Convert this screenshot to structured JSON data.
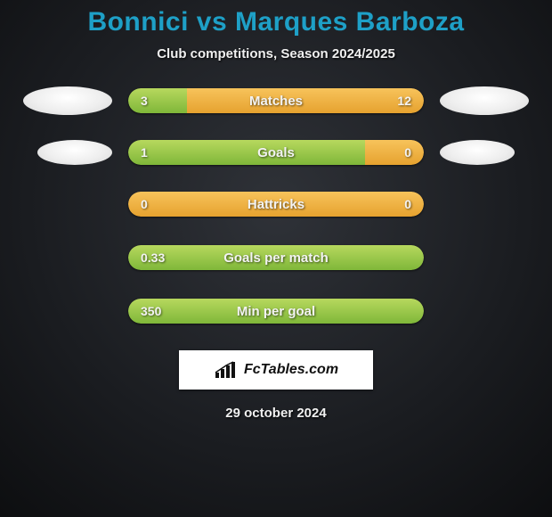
{
  "title": "Bonnici vs Marques Barboza",
  "subtitle": "Club competitions, Season 2024/2025",
  "date": "29 october 2024",
  "badge_text": "FcTables.com",
  "colors": {
    "title": "#1ea0c7",
    "bg_outer": "#0d0e10",
    "left_bar_top": "#b7d85e",
    "left_bar_bottom": "#7fb739",
    "right_bar_top": "#f7c35b",
    "right_bar_bottom": "#e6a22f",
    "ellipse": "#ffffff"
  },
  "bars": [
    {
      "label": "Matches",
      "left_value": "3",
      "right_value": "12",
      "left_pct": 20,
      "right_pct": 80,
      "show_ellipses": true,
      "ellipse_small": false
    },
    {
      "label": "Goals",
      "left_value": "1",
      "right_value": "0",
      "left_pct": 80,
      "right_pct": 20,
      "show_ellipses": true,
      "ellipse_small": true
    },
    {
      "label": "Hattricks",
      "left_value": "0",
      "right_value": "0",
      "left_pct": 0,
      "right_pct": 100,
      "show_ellipses": false,
      "ellipse_small": false
    },
    {
      "label": "Goals per match",
      "left_value": "0.33",
      "right_value": "",
      "left_pct": 100,
      "right_pct": 0,
      "show_ellipses": false,
      "ellipse_small": false
    },
    {
      "label": "Min per goal",
      "left_value": "350",
      "right_value": "",
      "left_pct": 100,
      "right_pct": 0,
      "show_ellipses": false,
      "ellipse_small": false
    }
  ]
}
